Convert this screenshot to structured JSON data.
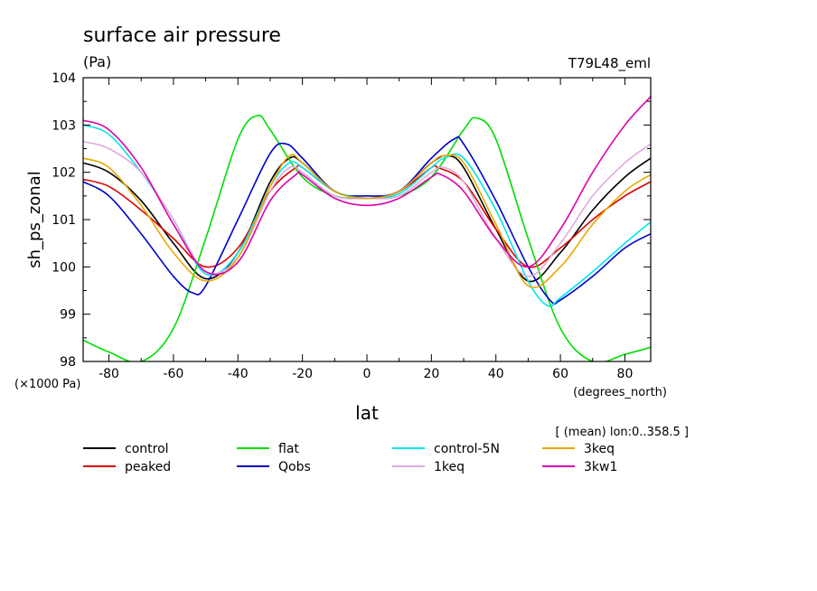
{
  "chart_data": {
    "type": "line",
    "title": "surface air pressure",
    "units": "(Pa)",
    "subtitle": "T79L48_eml",
    "xlabel": "lat",
    "x_units": "(degrees_north)",
    "ylabel": "sh_ps_zonal",
    "y_scale_note": "(×1000 Pa)",
    "note": "[ (mean) lon:0..358.5 ]",
    "xlim": [
      -88,
      88
    ],
    "ylim": [
      98,
      104
    ],
    "xticks": [
      "-80",
      "-60",
      "-40",
      "-20",
      "0",
      "20",
      "40",
      "60",
      "80"
    ],
    "xtick_values": [
      -80,
      -60,
      -40,
      -20,
      0,
      20,
      40,
      60,
      80
    ],
    "yticks": [
      "98",
      "99",
      "100",
      "101",
      "102",
      "103",
      "104"
    ],
    "ytick_values": [
      98,
      99,
      100,
      101,
      102,
      103,
      104
    ],
    "series": [
      {
        "name": "control",
        "color": "#000000",
        "x": [
          -88,
          -80,
          -70,
          -60,
          -50,
          -40,
          -30,
          -24,
          -20,
          -10,
          0,
          10,
          20,
          25,
          30,
          40,
          50,
          60,
          70,
          80,
          88
        ],
        "y": [
          102.2,
          102.0,
          101.4,
          100.5,
          99.75,
          100.3,
          101.8,
          102.3,
          102.2,
          101.6,
          101.45,
          101.6,
          102.2,
          102.35,
          102.1,
          100.8,
          99.7,
          100.3,
          101.2,
          101.9,
          102.3
        ]
      },
      {
        "name": "peaked",
        "color": "#dd0000",
        "x": [
          -88,
          -80,
          -70,
          -60,
          -50,
          -40,
          -30,
          -22,
          -20,
          -10,
          0,
          10,
          20,
          22,
          30,
          40,
          50,
          60,
          70,
          80,
          88
        ],
        "y": [
          101.85,
          101.7,
          101.2,
          100.6,
          100.0,
          100.4,
          101.6,
          102.1,
          102.1,
          101.6,
          101.45,
          101.6,
          102.1,
          102.1,
          101.8,
          100.8,
          100.0,
          100.4,
          101.0,
          101.5,
          101.8
        ]
      },
      {
        "name": "flat",
        "color": "#00dd00",
        "x": [
          -88,
          -80,
          -70,
          -60,
          -50,
          -40,
          -34,
          -30,
          -20,
          -10,
          0,
          10,
          20,
          30,
          34,
          40,
          50,
          60,
          70,
          80,
          88
        ],
        "y": [
          98.45,
          98.2,
          98.0,
          98.7,
          100.6,
          102.7,
          103.2,
          102.9,
          101.9,
          101.5,
          101.45,
          101.5,
          101.9,
          102.9,
          103.15,
          102.7,
          100.6,
          98.7,
          98.0,
          98.15,
          98.3
        ]
      },
      {
        "name": "Qobs",
        "color": "#0000cc",
        "x": [
          -88,
          -80,
          -70,
          -60,
          -54,
          -50,
          -40,
          -30,
          -25,
          -20,
          -10,
          0,
          10,
          20,
          27,
          30,
          40,
          50,
          57,
          60,
          70,
          80,
          88
        ],
        "y": [
          101.8,
          101.5,
          100.7,
          99.8,
          99.45,
          99.6,
          101.0,
          102.4,
          102.6,
          102.3,
          101.6,
          101.5,
          101.6,
          102.3,
          102.7,
          102.6,
          101.4,
          100.0,
          99.28,
          99.3,
          99.8,
          100.4,
          100.7
        ]
      },
      {
        "name": "control-5N",
        "color": "#00e5ee",
        "x": [
          -88,
          -80,
          -70,
          -60,
          -50,
          -40,
          -30,
          -24,
          -20,
          -10,
          0,
          10,
          20,
          24,
          30,
          40,
          50,
          56,
          60,
          70,
          80,
          88
        ],
        "y": [
          103.0,
          102.8,
          102.0,
          101.0,
          99.85,
          100.3,
          101.7,
          102.2,
          102.1,
          101.6,
          101.45,
          101.55,
          102.1,
          102.3,
          102.3,
          101.2,
          99.7,
          99.18,
          99.35,
          99.9,
          100.5,
          100.95
        ]
      },
      {
        "name": "1keq",
        "color": "#ddaadd",
        "x": [
          -88,
          -80,
          -70,
          -60,
          -50,
          -40,
          -30,
          -24,
          -20,
          -10,
          0,
          10,
          20,
          24,
          30,
          40,
          50,
          60,
          70,
          80,
          88
        ],
        "y": [
          102.65,
          102.5,
          102.0,
          101.0,
          99.9,
          100.2,
          101.6,
          102.1,
          102.0,
          101.5,
          101.45,
          101.5,
          102.0,
          102.1,
          101.8,
          100.6,
          99.8,
          100.5,
          101.5,
          102.2,
          102.6
        ]
      },
      {
        "name": "3keq",
        "color": "#e8a800",
        "x": [
          -88,
          -80,
          -70,
          -60,
          -50,
          -40,
          -30,
          -24,
          -20,
          -10,
          0,
          10,
          20,
          24,
          30,
          40,
          50,
          60,
          70,
          80,
          88
        ],
        "y": [
          102.3,
          102.1,
          101.3,
          100.3,
          99.7,
          100.2,
          101.7,
          102.35,
          102.2,
          101.6,
          101.45,
          101.6,
          102.2,
          102.35,
          102.2,
          100.9,
          99.6,
          100.0,
          100.9,
          101.6,
          101.95
        ]
      },
      {
        "name": "3kw1",
        "color": "#dd00aa",
        "x": [
          -88,
          -80,
          -70,
          -60,
          -50,
          -40,
          -30,
          -22,
          -20,
          -10,
          0,
          10,
          20,
          23,
          30,
          40,
          50,
          60,
          70,
          80,
          88
        ],
        "y": [
          103.1,
          102.9,
          102.1,
          100.9,
          99.9,
          100.1,
          101.4,
          101.95,
          101.95,
          101.45,
          101.3,
          101.45,
          101.9,
          101.95,
          101.6,
          100.6,
          100.0,
          100.8,
          102.0,
          103.0,
          103.6
        ]
      }
    ]
  }
}
